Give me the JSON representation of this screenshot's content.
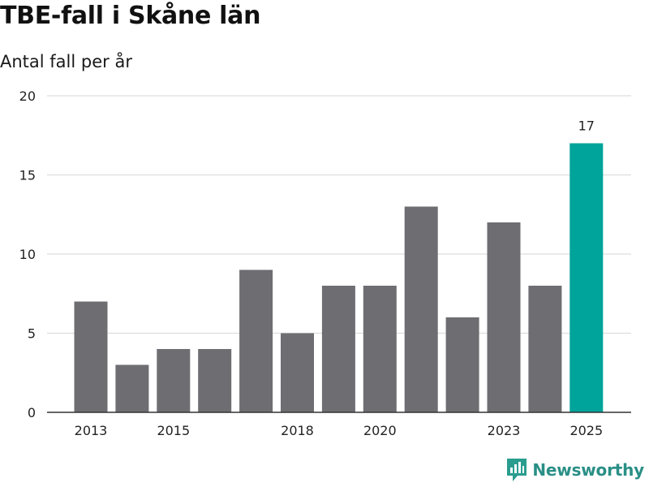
{
  "header": {
    "title": "TBE-fall i Skåne län",
    "subtitle": "Antal fall per år"
  },
  "brand": {
    "name": "Newsworthy",
    "icon": "newsworthy-logo-icon",
    "color": "#2a9d8f"
  },
  "colors": {
    "bar": "#6e6d72",
    "highlight": "#00a49a",
    "grid": "#dddddd",
    "axis": "#333333"
  },
  "chart_data": {
    "type": "bar",
    "title": "TBE-fall i Skåne län",
    "subtitle": "Antal fall per år",
    "xlabel": "",
    "ylabel": "",
    "categories": [
      "2013",
      "2014",
      "2015",
      "2016",
      "2017",
      "2018",
      "2019",
      "2020",
      "2021",
      "2022",
      "2023",
      "2024",
      "2025"
    ],
    "values": [
      7,
      3,
      4,
      4,
      9,
      5,
      8,
      8,
      13,
      6,
      12,
      8,
      17
    ],
    "x_tick_labels": [
      "2013",
      "2015",
      "2018",
      "2020",
      "2023",
      "2025"
    ],
    "y_ticks": [
      "0",
      "5",
      "10",
      "15",
      "20"
    ],
    "ylim": [
      0,
      20
    ],
    "grid": true,
    "highlight_category": "2025",
    "data_labels": [
      {
        "category": "2025",
        "text": "17"
      }
    ]
  }
}
